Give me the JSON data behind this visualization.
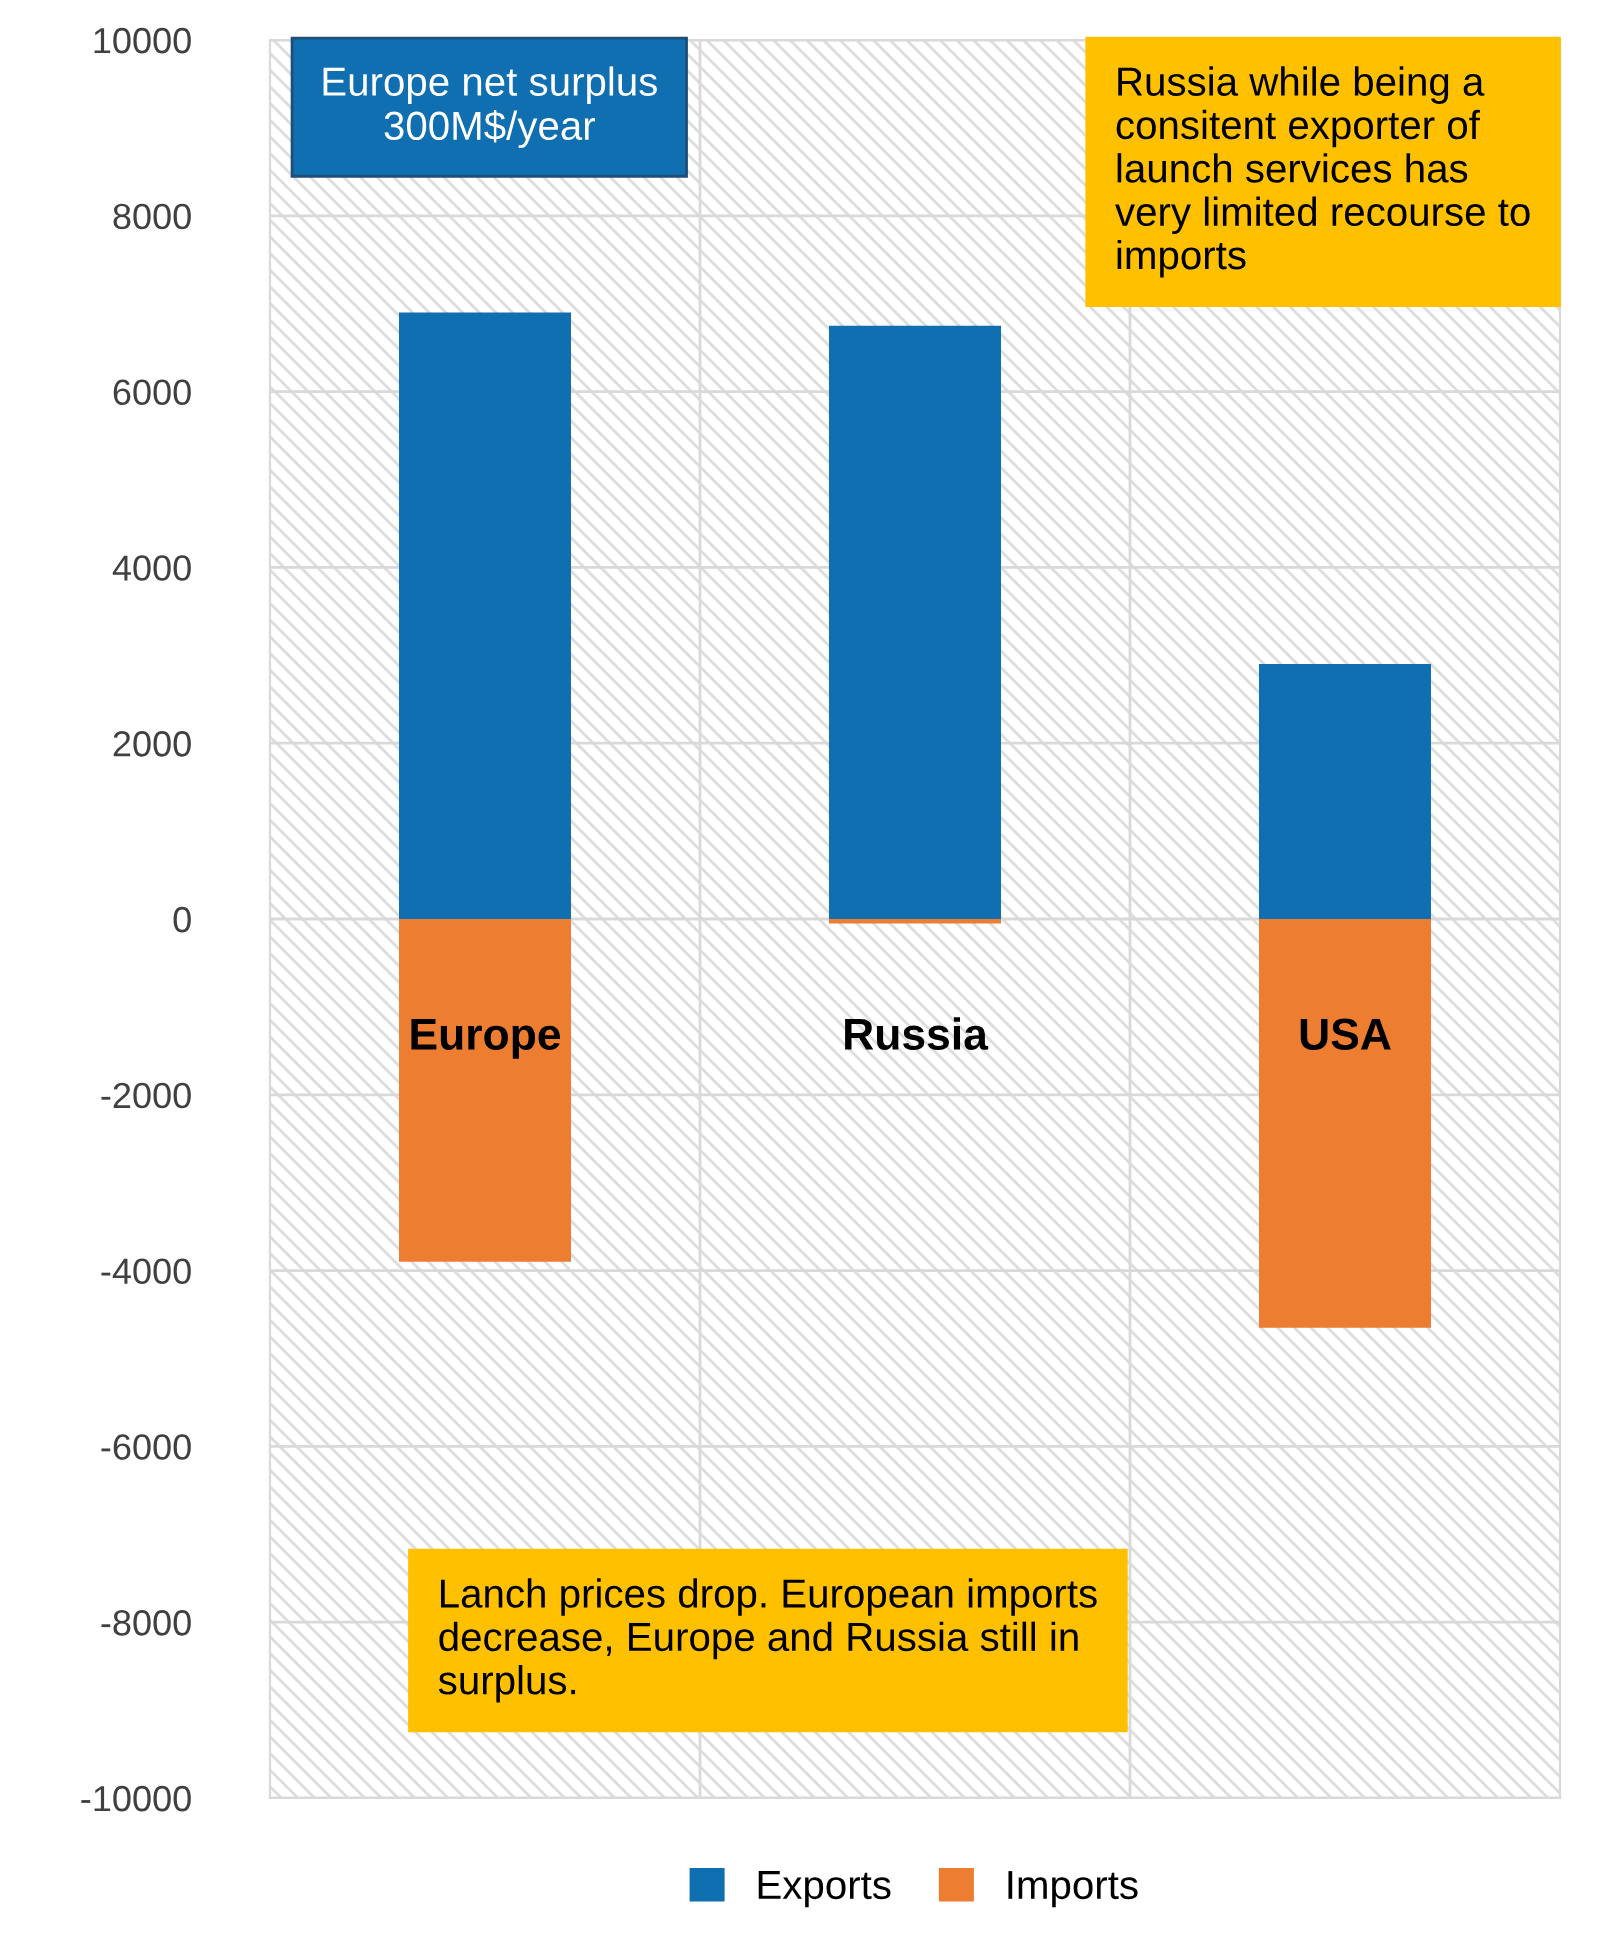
{
  "chart_data": {
    "type": "bar",
    "stacked": true,
    "categories": [
      "Europe",
      "Russia",
      "USA"
    ],
    "series": [
      {
        "name": "Exports",
        "color": "#0f6fb0",
        "values": [
          6900,
          6750,
          2900
        ]
      },
      {
        "name": "Imports",
        "color": "#ed7d31",
        "values": [
          -3900,
          -50,
          -4650
        ]
      }
    ],
    "ylim": [
      -10000,
      10000
    ],
    "yticks": [
      -10000,
      -8000,
      -6000,
      -4000,
      -2000,
      0,
      2000,
      4000,
      6000,
      8000,
      10000
    ],
    "grid": true,
    "legend": "bottom",
    "tick_labels": "y",
    "annotations": [
      "Europe net surplus 300M$/year",
      "Russia while being a consitent exporter of launch services has very limited recourse to imports",
      "Lanch prices drop. European imports decrease, Europe and Russia still in surplus."
    ]
  }
}
